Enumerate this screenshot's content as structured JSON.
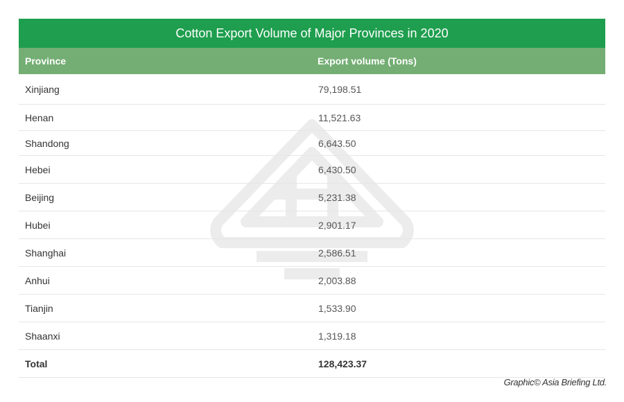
{
  "table": {
    "title": "Cotton Export Volume of Major Provinces in 2020",
    "columns": [
      "Province",
      "Export volume (Tons)"
    ],
    "rows": [
      {
        "province": "Xinjiang",
        "value": "79,198.51"
      },
      {
        "province": "Henan",
        "value": "11,521.63"
      },
      {
        "province": "Shandong",
        "value": "6,643.50"
      },
      {
        "province": "Hebei",
        "value": "6,430.50"
      },
      {
        "province": "Beijing",
        "value": "5,231.38"
      },
      {
        "province": "Hubei",
        "value": "2,901.17"
      },
      {
        "province": "Shanghai",
        "value": "2,586.51"
      },
      {
        "province": "Anhui",
        "value": "2,003.88"
      },
      {
        "province": "Tianjin",
        "value": "1,533.90"
      },
      {
        "province": "Shaanxi",
        "value": "1,319.18"
      }
    ],
    "total": {
      "label": "Total",
      "value": "128,423.37"
    }
  },
  "credit": "Graphic© Asia Briefing Ltd.",
  "colors": {
    "title_bg": "#1e9e4e",
    "header_bg": "#74ae74"
  },
  "chart_data": {
    "type": "table",
    "title": "Cotton Export Volume of Major Provinces in 2020",
    "columns": [
      "Province",
      "Export volume (Tons)"
    ],
    "categories": [
      "Xinjiang",
      "Henan",
      "Shandong",
      "Hebei",
      "Beijing",
      "Hubei",
      "Shanghai",
      "Anhui",
      "Tianjin",
      "Shaanxi",
      "Total"
    ],
    "values": [
      79198.51,
      11521.63,
      6643.5,
      6430.5,
      5231.38,
      2901.17,
      2586.51,
      2003.88,
      1533.9,
      1319.18,
      128423.37
    ]
  }
}
